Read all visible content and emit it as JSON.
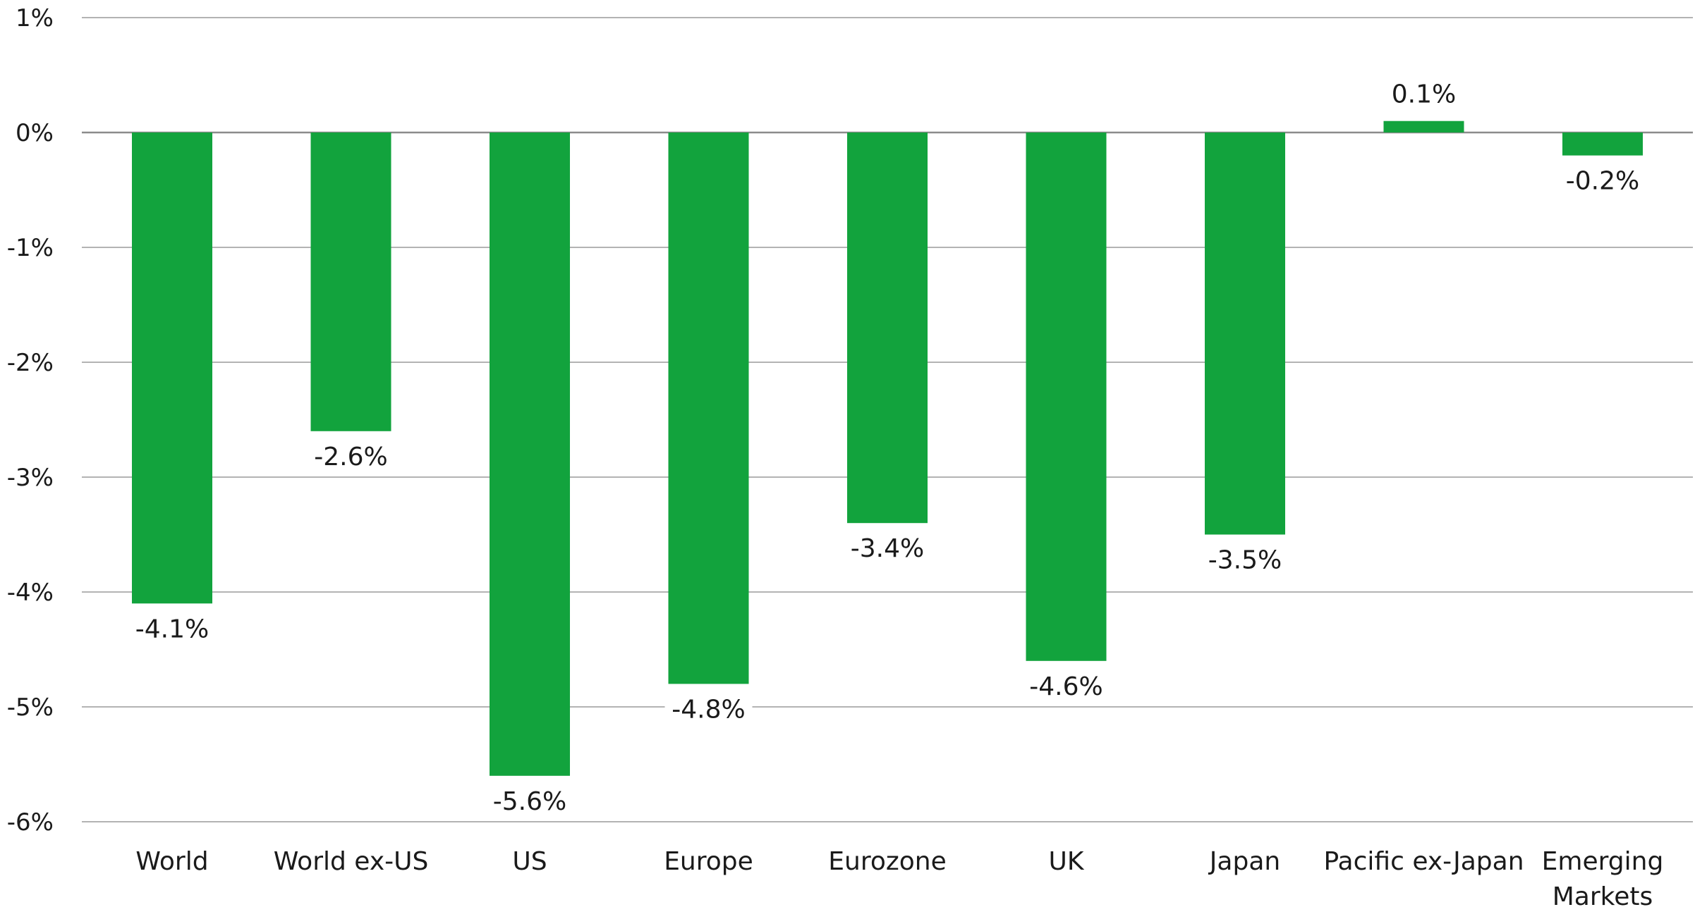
{
  "chart_data": {
    "type": "bar",
    "categories": [
      "World",
      "World ex-US",
      "US",
      "Europe",
      "Eurozone",
      "UK",
      "Japan",
      "Pacific ex-Japan",
      "Emerging Markets"
    ],
    "category_lines": [
      [
        "World"
      ],
      [
        "World ex-US"
      ],
      [
        "US"
      ],
      [
        "Europe"
      ],
      [
        "Eurozone"
      ],
      [
        "UK"
      ],
      [
        "Japan"
      ],
      [
        "Pacific ex-Japan"
      ],
      [
        "Emerging",
        "Markets"
      ]
    ],
    "values": [
      -4.1,
      -2.6,
      -5.6,
      -4.8,
      -3.4,
      -4.6,
      -3.5,
      0.1,
      -0.2
    ],
    "data_labels": [
      "-4.1%",
      "-2.6%",
      "-5.6%",
      "-4.8%",
      "-3.4%",
      "-4.6%",
      "-3.5%",
      "0.1%",
      "-0.2%"
    ],
    "ylim": [
      -6,
      1
    ],
    "yticks": [
      1,
      0,
      -1,
      -2,
      -3,
      -4,
      -5,
      -6
    ],
    "ytick_labels": [
      "1%",
      "0%",
      "-1%",
      "-2%",
      "-3%",
      "-4%",
      "-5%",
      "-6%"
    ],
    "title": "",
    "xlabel": "",
    "ylabel": "",
    "grid": true,
    "colors": {
      "bar": "#12a33d",
      "grid": "#b3b3b3",
      "zero_line": "#8c8c8c",
      "text": "#1a1a1a"
    }
  }
}
